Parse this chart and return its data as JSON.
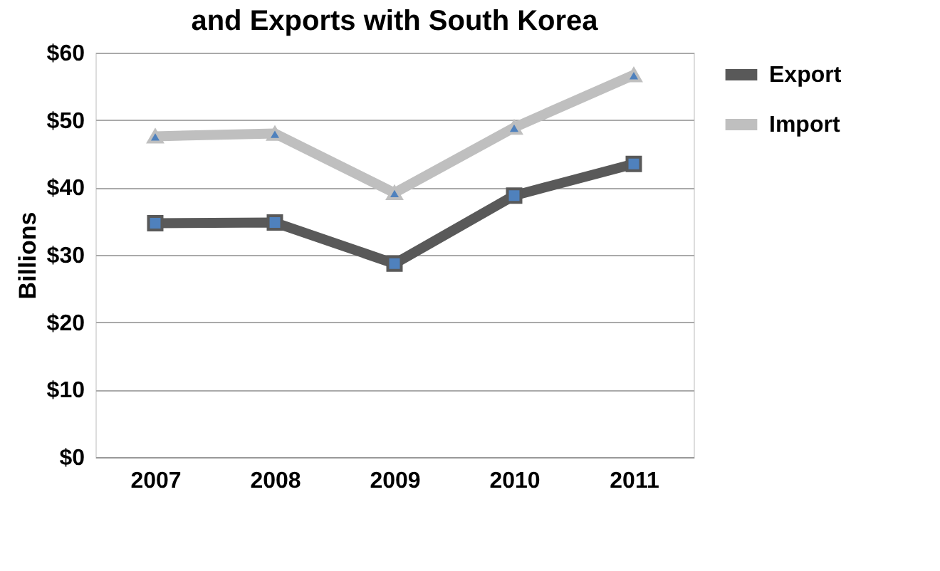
{
  "chart_data": {
    "type": "line",
    "title": "and Exports with South Korea",
    "ylabel": "Billions",
    "categories": [
      "2007",
      "2008",
      "2009",
      "2010",
      "2011"
    ],
    "series": [
      {
        "name": "Export",
        "color": "#595959",
        "marker": "square",
        "values": [
          34.7,
          34.8,
          28.7,
          38.8,
          43.5
        ]
      },
      {
        "name": "Import",
        "color": "#bfbfbf",
        "marker": "triangle",
        "values": [
          47.6,
          48.0,
          39.2,
          48.9,
          56.7
        ]
      }
    ],
    "ylim": [
      0,
      60
    ],
    "yticks": [
      {
        "value": 0,
        "label": "$0"
      },
      {
        "value": 10,
        "label": "$10"
      },
      {
        "value": 20,
        "label": "$20"
      },
      {
        "value": 30,
        "label": "$30"
      },
      {
        "value": 40,
        "label": "$40"
      },
      {
        "value": 50,
        "label": "$50"
      },
      {
        "value": 60,
        "label": "$60"
      }
    ],
    "grid": "y",
    "legend": "right",
    "line_style": "solid"
  }
}
